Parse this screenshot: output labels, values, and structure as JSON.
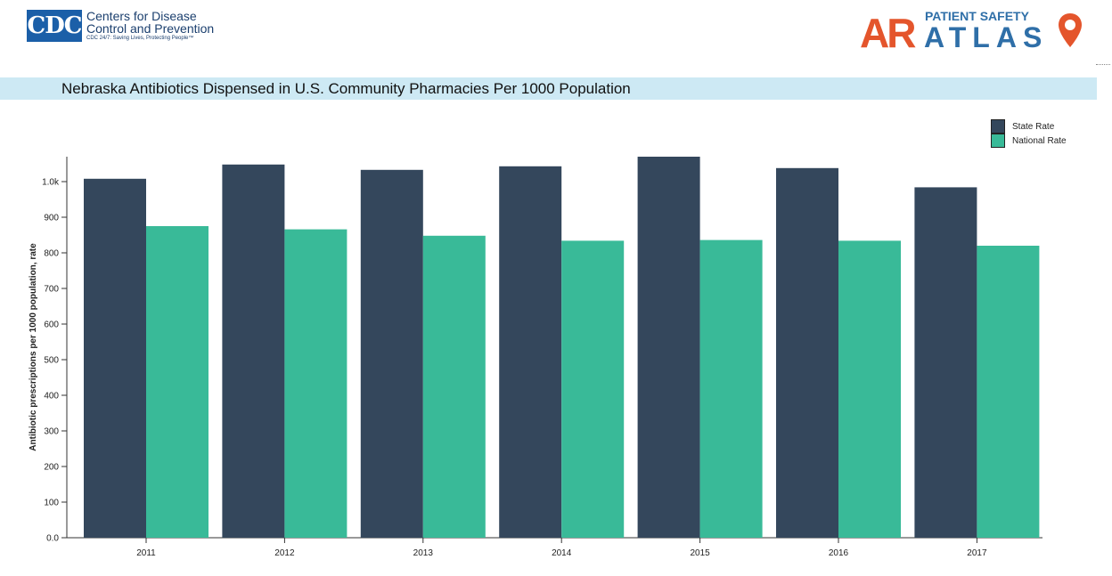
{
  "header": {
    "cdc_logo": {
      "mark": "CDC",
      "line1": "Centers for Disease",
      "line2": "Control and Prevention",
      "tagline": "CDC 24/7: Saving Lives, Protecting People™"
    },
    "atlas_logo": {
      "ar": "AR",
      "patient_safety": "PATIENT SAFETY",
      "atlas": "ATLAS",
      "pin_icon": "location-pin-icon"
    }
  },
  "title": "Nebraska Antibiotics Dispensed in U.S. Community Pharmacies Per 1000 Population",
  "legend": {
    "state": "State Rate",
    "national": "National Rate"
  },
  "colors": {
    "state": "#34475c",
    "national": "#39ba98",
    "title_bar": "#cde9f4"
  },
  "chart_data": {
    "type": "bar",
    "categories": [
      "2011",
      "2012",
      "2013",
      "2014",
      "2015",
      "2016",
      "2017"
    ],
    "series": [
      {
        "name": "State Rate",
        "values": [
          1008,
          1048,
          1033,
          1043,
          1070,
          1038,
          984
        ]
      },
      {
        "name": "National Rate",
        "values": [
          875,
          866,
          848,
          834,
          836,
          834,
          820
        ]
      }
    ],
    "ylabel": "Antibiotic prescriptions per 1000 population, rate",
    "xlabel": "",
    "ylim": [
      0,
      1070
    ],
    "yticks": [
      0,
      100,
      200,
      300,
      400,
      500,
      600,
      700,
      800,
      900,
      1000
    ],
    "ytick_labels": [
      "0.0",
      "100",
      "200",
      "300",
      "400",
      "500",
      "600",
      "700",
      "800",
      "900",
      "1.0k"
    ],
    "legend_position": "top-right",
    "grid": false
  }
}
